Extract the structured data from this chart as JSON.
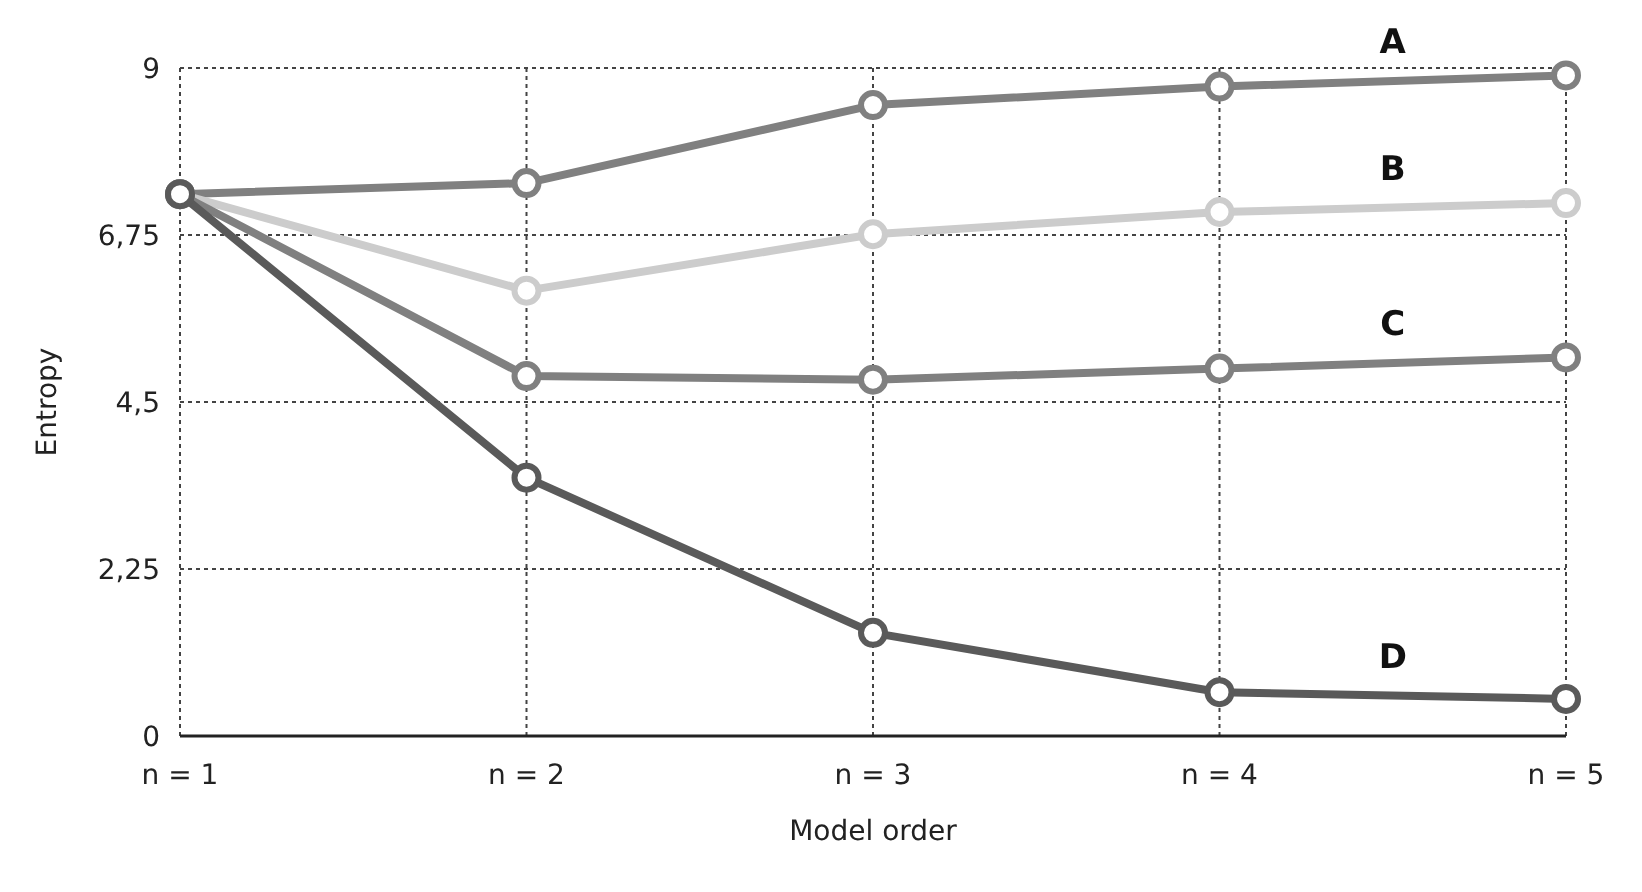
{
  "chart_data": {
    "type": "line",
    "xlabel": "Model order",
    "ylabel": "Entropy",
    "categories": [
      "n = 1",
      "n = 2",
      "n = 3",
      "n = 4",
      "n = 5"
    ],
    "ylim": [
      0,
      9
    ],
    "yticks": [
      0,
      {
        "value": 2.25,
        "label": "2,25"
      },
      {
        "value": 4.5,
        "label": "4,5"
      },
      {
        "value": 6.75,
        "label": "6,75"
      },
      9
    ],
    "grid": true,
    "marker": "circle",
    "series": [
      {
        "name": "A",
        "color": "#808080",
        "values": [
          7.3,
          7.45,
          8.5,
          8.75,
          8.9
        ]
      },
      {
        "name": "B",
        "color": "#cccccc",
        "values": [
          7.3,
          6.0,
          6.76,
          7.06,
          7.18
        ]
      },
      {
        "name": "C",
        "color": "#808080",
        "values": [
          7.3,
          4.85,
          4.8,
          4.95,
          5.1
        ]
      },
      {
        "name": "D",
        "color": "#5a5a5a",
        "values": [
          7.3,
          3.48,
          1.39,
          0.59,
          0.5
        ]
      }
    ]
  }
}
